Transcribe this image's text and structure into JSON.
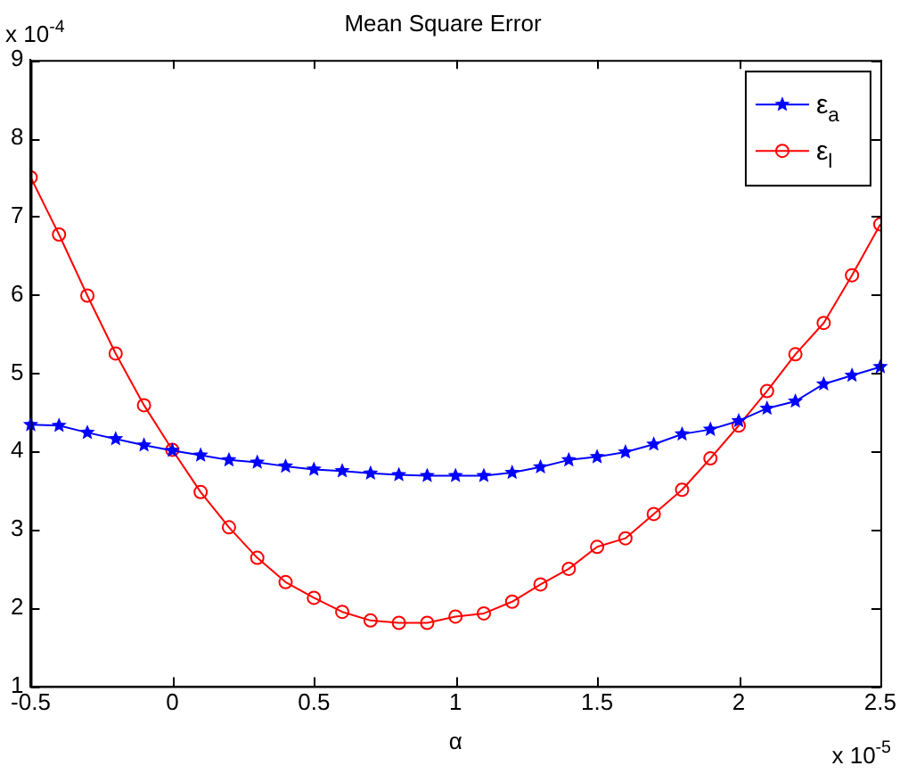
{
  "chart_data": {
    "type": "line",
    "title": "Mean Square Error",
    "xlabel": "α",
    "x": [
      -0.5,
      -0.4,
      -0.3,
      -0.2,
      -0.1,
      0,
      0.1,
      0.2,
      0.3,
      0.4,
      0.5,
      0.6,
      0.7,
      0.8,
      0.9,
      1.0,
      1.1,
      1.2,
      1.3,
      1.4,
      1.5,
      1.6,
      1.7,
      1.8,
      1.9,
      2.0,
      2.1,
      2.2,
      2.3,
      2.4,
      2.5
    ],
    "series": [
      {
        "name": "ε$_{a}$",
        "color": "#0000ff",
        "marker": "star",
        "values": [
          4.34,
          4.33,
          4.24,
          4.16,
          4.08,
          4.01,
          3.95,
          3.89,
          3.86,
          3.81,
          3.77,
          3.75,
          3.72,
          3.7,
          3.69,
          3.69,
          3.69,
          3.73,
          3.8,
          3.89,
          3.93,
          3.99,
          4.09,
          4.22,
          4.28,
          4.39,
          4.55,
          4.64,
          4.86,
          4.97,
          5.08
        ]
      },
      {
        "name": "ε$_{l}$",
        "color": "#ff0000",
        "marker": "circle",
        "values": [
          7.5,
          6.77,
          5.99,
          5.25,
          4.59,
          4.02,
          3.48,
          3.03,
          2.64,
          2.33,
          2.13,
          1.95,
          1.84,
          1.81,
          1.81,
          1.89,
          1.93,
          2.08,
          2.3,
          2.5,
          2.78,
          2.89,
          3.2,
          3.51,
          3.91,
          4.33,
          4.77,
          5.24,
          5.64,
          6.25,
          6.9
        ]
      }
    ],
    "xlim": [
      -0.5,
      2.5
    ],
    "xticks": [
      -0.5,
      0,
      0.5,
      1,
      1.5,
      2,
      2.5
    ],
    "ylim": [
      1,
      9
    ],
    "yticks": [
      1,
      2,
      3,
      4,
      5,
      6,
      7,
      8,
      9
    ],
    "annotations": [
      "x 10$^{-4}$",
      "x 10$^{-5}$"
    ],
    "legend": "top right",
    "line_style": "solid",
    "grid": false
  }
}
